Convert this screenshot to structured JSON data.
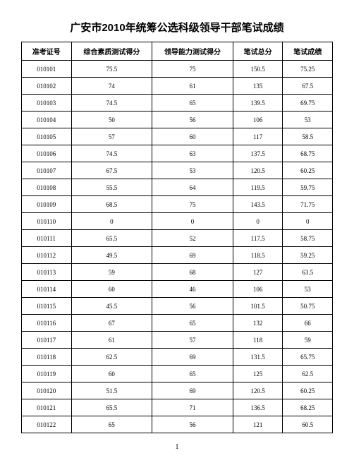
{
  "title": "广安市2010年统筹公选科级领导干部笔试成绩",
  "page_number": "1",
  "table": {
    "columns": [
      "准考证号",
      "综合素质测试得分",
      "领导能力测试得分",
      "笔试总分",
      "笔试成绩"
    ],
    "rows": [
      [
        "010101",
        "75.5",
        "75",
        "150.5",
        "75.25"
      ],
      [
        "010102",
        "74",
        "61",
        "135",
        "67.5"
      ],
      [
        "010103",
        "74.5",
        "65",
        "139.5",
        "69.75"
      ],
      [
        "010104",
        "50",
        "56",
        "106",
        "53"
      ],
      [
        "010105",
        "57",
        "60",
        "117",
        "58.5"
      ],
      [
        "010106",
        "74.5",
        "63",
        "137.5",
        "68.75"
      ],
      [
        "010107",
        "67.5",
        "53",
        "120.5",
        "60.25"
      ],
      [
        "010108",
        "55.5",
        "64",
        "119.5",
        "59.75"
      ],
      [
        "010109",
        "68.5",
        "75",
        "143.5",
        "71.75"
      ],
      [
        "010110",
        "0",
        "0",
        "0",
        "0"
      ],
      [
        "010111",
        "65.5",
        "52",
        "117.5",
        "58.75"
      ],
      [
        "010112",
        "49.5",
        "69",
        "118.5",
        "59.25"
      ],
      [
        "010113",
        "59",
        "68",
        "127",
        "63.5"
      ],
      [
        "010114",
        "60",
        "46",
        "106",
        "53"
      ],
      [
        "010115",
        "45.5",
        "56",
        "101.5",
        "50.75"
      ],
      [
        "010116",
        "67",
        "65",
        "132",
        "66"
      ],
      [
        "010117",
        "61",
        "57",
        "118",
        "59"
      ],
      [
        "010118",
        "62.5",
        "69",
        "131.5",
        "65.75"
      ],
      [
        "010119",
        "60",
        "65",
        "125",
        "62.5"
      ],
      [
        "010120",
        "51.5",
        "69",
        "120.5",
        "60.25"
      ],
      [
        "010121",
        "65.5",
        "71",
        "136.5",
        "68.25"
      ],
      [
        "010122",
        "65",
        "56",
        "121",
        "60.5"
      ]
    ]
  }
}
